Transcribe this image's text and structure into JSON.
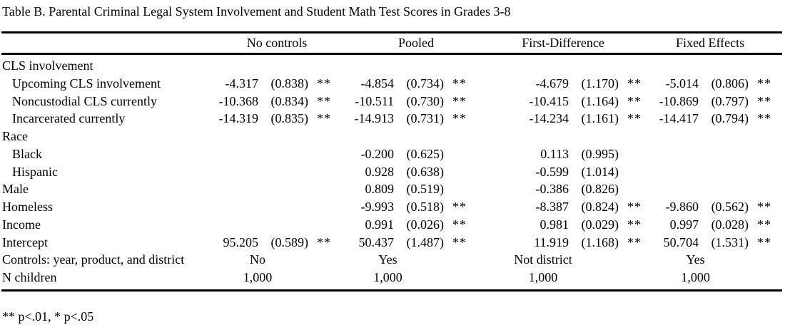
{
  "title": "Table B. Parental Criminal Legal System Involvement and Student Math Test Scores in Grades 3-8",
  "footnote": "** p<.01, * p<.05",
  "columns": [
    "No controls",
    "Pooled",
    "First-Difference",
    "Fixed Effects"
  ],
  "rows": [
    {
      "type": "section",
      "label": "CLS involvement",
      "indent": 0
    },
    {
      "type": "data",
      "label": "Upcoming CLS involvement",
      "indent": 1,
      "cells": [
        [
          "-4.317",
          "(0.838)",
          "**"
        ],
        [
          "-4.854",
          "(0.734)",
          "**"
        ],
        [
          "-4.679",
          "(1.170)",
          "**"
        ],
        [
          "-5.014",
          "(0.806)",
          "**"
        ]
      ]
    },
    {
      "type": "data",
      "label": "Noncustodial CLS currently",
      "indent": 1,
      "cells": [
        [
          "-10.368",
          "(0.834)",
          "**"
        ],
        [
          "-10.511",
          "(0.730)",
          "**"
        ],
        [
          "-10.415",
          "(1.164)",
          "**"
        ],
        [
          "-10.869",
          "(0.797)",
          "**"
        ]
      ]
    },
    {
      "type": "data",
      "label": "Incarcerated currently",
      "indent": 1,
      "cells": [
        [
          "-14.319",
          "(0.835)",
          "**"
        ],
        [
          "-14.913",
          "(0.731)",
          "**"
        ],
        [
          "-14.234",
          "(1.161)",
          "**"
        ],
        [
          "-14.417",
          "(0.794)",
          "**"
        ]
      ]
    },
    {
      "type": "section",
      "label": "Race",
      "indent": 0
    },
    {
      "type": "data",
      "label": "Black",
      "indent": 1,
      "cells": [
        [
          "",
          "",
          ""
        ],
        [
          "-0.200",
          "(0.625)",
          ""
        ],
        [
          "0.113",
          "(0.995)",
          ""
        ],
        [
          "",
          "",
          ""
        ]
      ]
    },
    {
      "type": "data",
      "label": "Hispanic",
      "indent": 1,
      "cells": [
        [
          "",
          "",
          ""
        ],
        [
          "0.928",
          "(0.638)",
          ""
        ],
        [
          "-0.599",
          "(1.014)",
          ""
        ],
        [
          "",
          "",
          ""
        ]
      ]
    },
    {
      "type": "data",
      "label": "Male",
      "indent": 0,
      "cells": [
        [
          "",
          "",
          ""
        ],
        [
          "0.809",
          "(0.519)",
          ""
        ],
        [
          "-0.386",
          "(0.826)",
          ""
        ],
        [
          "",
          "",
          ""
        ]
      ]
    },
    {
      "type": "data",
      "label": "Homeless",
      "indent": 0,
      "cells": [
        [
          "",
          "",
          ""
        ],
        [
          "-9.993",
          "(0.518)",
          "**"
        ],
        [
          "-8.387",
          "(0.824)",
          "**"
        ],
        [
          "-9.860",
          "(0.562)",
          "**"
        ]
      ]
    },
    {
      "type": "data",
      "label": "Income",
      "indent": 0,
      "cells": [
        [
          "",
          "",
          ""
        ],
        [
          "0.991",
          "(0.026)",
          "**"
        ],
        [
          "0.981",
          "(0.029)",
          "**"
        ],
        [
          "0.997",
          "(0.028)",
          "**"
        ]
      ]
    },
    {
      "type": "data",
      "label": "Intercept",
      "indent": 0,
      "cells": [
        [
          "95.205",
          "(0.589)",
          "**"
        ],
        [
          "50.437",
          "(1.487)",
          "**"
        ],
        [
          "11.919",
          "(1.168)",
          "**"
        ],
        [
          "50.704",
          "(1.531)",
          "**"
        ]
      ]
    },
    {
      "type": "summary",
      "label": "Controls: year, product, and district",
      "indent": 0,
      "values": [
        "No",
        "Yes",
        "Not district",
        "Yes"
      ]
    },
    {
      "type": "summary",
      "label": "N children",
      "indent": 0,
      "values": [
        "1,000",
        "1,000",
        "1,000",
        "1,000"
      ]
    }
  ]
}
